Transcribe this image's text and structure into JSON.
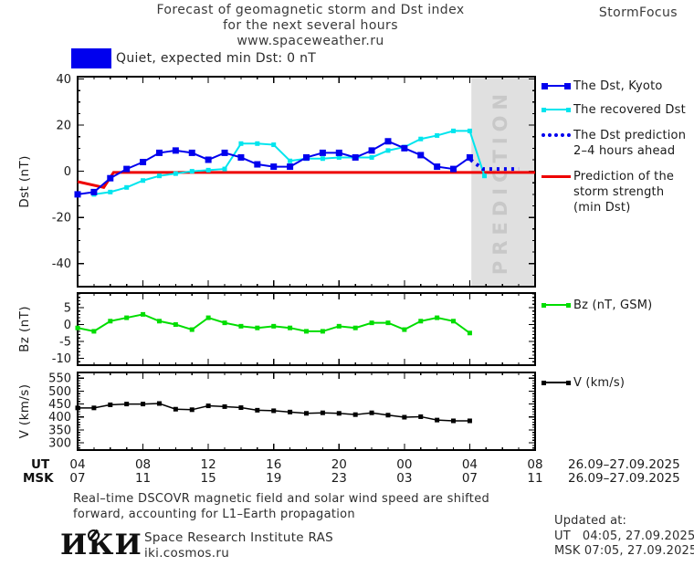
{
  "header": {
    "title_lines": [
      "Forecast of geomagnetic storm and Dst index",
      "for the next several hours",
      "www.spaceweather.ru"
    ],
    "brand": "StormFocus"
  },
  "status": {
    "label": "Quiet, expected min Dst: 0 nT",
    "box_color": "#0000ee"
  },
  "colors": {
    "kyoto_blue": "#0000ee",
    "recovered_cyan": "#00e5ee",
    "prediction_blue": "#0000ee",
    "storm_red": "#ee0000",
    "bz_green": "#00dd00",
    "v_black": "#000000",
    "band_gray": "#e0e0e0",
    "band_text": "#c8c8c8"
  },
  "watermark": "PREDICTION",
  "legend": {
    "dst": [
      {
        "label": "The Dst, Kyoto"
      },
      {
        "label": "The recovered Dst"
      },
      {
        "label": "The Dst prediction",
        "label2": "2–4 hours ahead"
      },
      {
        "label": "Prediction of the",
        "label2": "storm strength",
        "label3": "(min Dst)"
      }
    ],
    "bz": {
      "label": "Bz (nT, GSM)"
    },
    "v": {
      "label": "V (km/s)"
    }
  },
  "chart_data": [
    {
      "id": "dst",
      "type": "line",
      "ylabel": "Dst (nT)",
      "xlim": [
        4,
        32
      ],
      "ylim": [
        -50,
        41
      ],
      "yticks": [
        40,
        20,
        0,
        -20,
        -40
      ],
      "yminor": 5,
      "band": {
        "from": 28.1,
        "to": 32
      },
      "series": [
        {
          "name": "Prediction of the storm strength (min Dst)",
          "color": "#ee0000",
          "lw": 3,
          "x": [
            4,
            5.6,
            6.2,
            32
          ],
          "y": [
            -4.5,
            -7,
            -0.5,
            -0.5
          ]
        },
        {
          "name": "The recovered Dst",
          "color": "#00e5ee",
          "lw": 2,
          "marker": 5,
          "x": [
            5,
            6,
            7,
            8,
            9,
            10,
            11,
            12,
            13,
            14,
            15,
            16,
            17,
            18,
            19,
            20,
            21,
            22,
            23,
            24,
            25,
            26,
            27,
            28,
            28.9
          ],
          "y": [
            -10,
            -9,
            -7,
            -4,
            -2,
            -1,
            0,
            0.5,
            1,
            12,
            12,
            11.5,
            4.5,
            5.5,
            5.5,
            6,
            6,
            6,
            9,
            10.5,
            14,
            15.5,
            17.5,
            17.5,
            -2
          ]
        },
        {
          "name": "The Dst, Kyoto",
          "color": "#0000ee",
          "lw": 2,
          "marker": 7,
          "x": [
            4,
            5,
            6,
            7,
            8,
            9,
            10,
            11,
            12,
            13,
            14,
            15,
            16,
            17,
            18,
            19,
            20,
            21,
            22,
            23,
            24,
            25,
            26,
            27,
            28
          ],
          "y": [
            -10,
            -9,
            -3,
            1,
            4,
            8,
            9,
            8,
            5,
            8,
            6,
            3,
            2,
            2,
            6,
            8,
            8,
            6,
            9,
            13,
            10,
            7,
            2,
            1,
            6
          ]
        },
        {
          "name": "The Dst prediction 2–4 hours ahead",
          "color": "#0000ee",
          "lw": 4,
          "dash": "3 5",
          "x": [
            28.05,
            28.8,
            31.0
          ],
          "y": [
            5,
            1,
            1
          ]
        }
      ]
    },
    {
      "id": "bz",
      "type": "line",
      "ylabel": "Bz (nT)",
      "xlim": [
        4,
        32
      ],
      "ylim": [
        -12,
        9.3
      ],
      "yticks": [
        5,
        0,
        -5,
        -10
      ],
      "yminor": 1,
      "series": [
        {
          "name": "Bz (nT, GSM)",
          "color": "#00dd00",
          "lw": 2,
          "marker": 5,
          "x": [
            4,
            5,
            6,
            7,
            8,
            9,
            10,
            11,
            12,
            13,
            14,
            15,
            16,
            17,
            18,
            19,
            20,
            21,
            22,
            23,
            24,
            25,
            26,
            27,
            28
          ],
          "y": [
            -1,
            -2,
            1,
            2,
            3,
            1,
            0,
            -1.5,
            2,
            0.5,
            -0.5,
            -1,
            -0.5,
            -1,
            -2,
            -2,
            -0.5,
            -1,
            0.5,
            0.5,
            -1.5,
            1,
            2,
            1,
            -2.5
          ]
        }
      ]
    },
    {
      "id": "v",
      "type": "line",
      "ylabel": "V (km/s)",
      "xlim": [
        4,
        32
      ],
      "ylim": [
        272,
        572
      ],
      "yticks": [
        550,
        500,
        450,
        400,
        350,
        300
      ],
      "yminor": 10,
      "series": [
        {
          "name": "V (km/s)",
          "color": "#000000",
          "lw": 1.5,
          "marker": 5,
          "x": [
            4,
            5,
            6,
            7,
            8,
            9,
            10,
            11,
            12,
            13,
            14,
            15,
            16,
            17,
            18,
            19,
            20,
            21,
            22,
            23,
            24,
            25,
            26,
            27,
            28
          ],
          "y": [
            435,
            435,
            447,
            450,
            450,
            452,
            430,
            428,
            443,
            440,
            436,
            426,
            424,
            419,
            414,
            416,
            414,
            409,
            416,
            407,
            399,
            401,
            388,
            385,
            385
          ]
        }
      ]
    }
  ],
  "xaxis": {
    "ut_label": "UT",
    "msk_label": "MSK",
    "hours": [
      4,
      8,
      12,
      16,
      20,
      24,
      28,
      32
    ],
    "ut_ticks": [
      "04",
      "08",
      "12",
      "16",
      "20",
      "00",
      "04",
      "08"
    ],
    "msk_ticks": [
      "07",
      "11",
      "15",
      "19",
      "23",
      "03",
      "07",
      "11"
    ],
    "ut_date": "26.09–27.09.2025",
    "msk_date": "26.09–27.09.2025"
  },
  "footer": {
    "note_lines": [
      "Real–time DSCOVR magnetic field and solar wind speed are shifted",
      "forward, accounting for L1–Earth propagation"
    ],
    "logo": "ИКИ",
    "institute": "Space Research Institute RAS",
    "site": "iki.cosmos.ru",
    "updated_label": "Updated at:",
    "updated_ut": "UT   04:05, 27.09.2025",
    "updated_msk": "MSK 07:05, 27.09.2025"
  }
}
